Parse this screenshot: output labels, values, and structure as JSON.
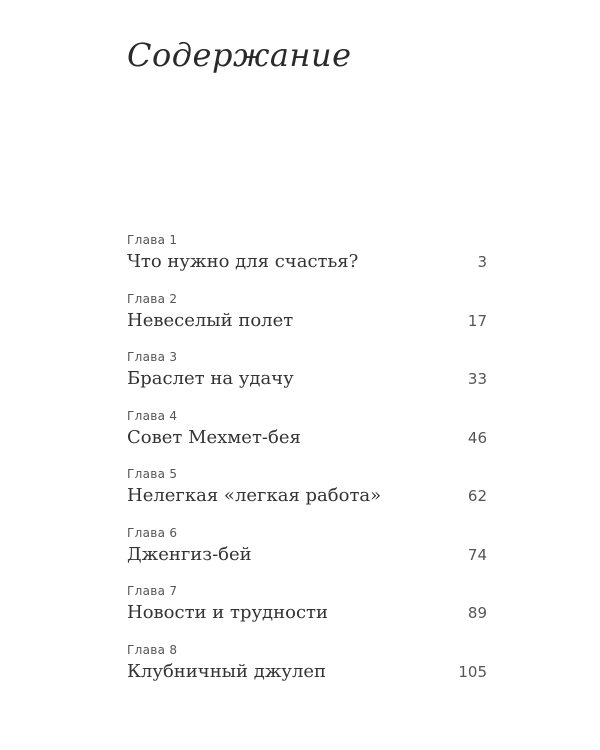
{
  "title": "Содержание",
  "chapters": [
    {
      "label": "Глава 1",
      "name": "Что нужно для счастья?",
      "page": "3"
    },
    {
      "label": "Глава 2",
      "name": "Невеселый полет",
      "page": "17"
    },
    {
      "label": "Глава 3",
      "name": "Браслет на удачу",
      "page": "33"
    },
    {
      "label": "Глава 4",
      "name": "Совет Мехмет-бея",
      "page": "46"
    },
    {
      "label": "Глава 5",
      "name": "Нелегкая «легкая работа»",
      "page": "62"
    },
    {
      "label": "Глава 6",
      "name": "Дженгиз-бей",
      "page": "74"
    },
    {
      "label": "Глава 7",
      "name": "Новости и трудности",
      "page": "89"
    },
    {
      "label": "Глава 8",
      "name": "Клубничный джулеп",
      "page": "105"
    }
  ]
}
